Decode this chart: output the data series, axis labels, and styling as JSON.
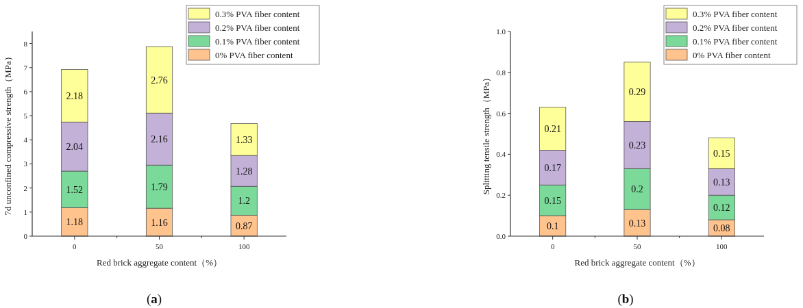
{
  "chart_data": [
    {
      "type": "bar",
      "stacked": true,
      "categories": [
        "0",
        "50",
        "100"
      ],
      "xlabel": "Red brick aggregate content（%）",
      "ylabel": "7d unconfined compressive strength（MPa）",
      "ylim": [
        0,
        8.5
      ],
      "yticks": [
        0,
        1,
        2,
        3,
        4,
        5,
        6,
        7,
        8
      ],
      "legend": "top right",
      "data_labels": true,
      "annotations": [
        "(**a**)"
      ],
      "series": [
        {
          "name": "0% PVA fiber content",
          "color": "#ffc38e",
          "values": [
            1.18,
            1.16,
            0.87
          ]
        },
        {
          "name": "0.1% PVA fiber content",
          "color": "#7bd99a",
          "values": [
            1.52,
            1.79,
            1.2
          ]
        },
        {
          "name": "0.2% PVA fiber content",
          "color": "#c3b1d8",
          "values": [
            2.04,
            2.16,
            1.28
          ]
        },
        {
          "name": "0.3% PVA fiber content",
          "color": "#ffff99",
          "values": [
            2.18,
            2.76,
            1.33
          ]
        }
      ]
    },
    {
      "type": "bar",
      "stacked": true,
      "categories": [
        "0",
        "50",
        "100"
      ],
      "xlabel": "Red brick aggregate content（%）",
      "ylabel": "Splitting tensile strength（MPa）",
      "ylim": [
        0,
        1.0
      ],
      "yticks": [
        {
          "value": 0,
          "label": "0.0"
        },
        {
          "value": 0.2,
          "label": "0.2"
        },
        {
          "value": 0.4,
          "label": "0.4"
        },
        {
          "value": 0.6,
          "label": "0.6"
        },
        {
          "value": 0.8,
          "label": "0.8"
        },
        {
          "value": 1.0,
          "label": "1.0"
        }
      ],
      "legend": "top right",
      "data_labels": true,
      "annotations": [
        "(**b**)"
      ],
      "series": [
        {
          "name": "0% PVA fiber content",
          "color": "#ffc38e",
          "values": [
            0.1,
            0.13,
            0.08
          ]
        },
        {
          "name": "0.1% PVA fiber content",
          "color": "#7bd99a",
          "values": [
            0.15,
            0.2,
            0.12
          ]
        },
        {
          "name": "0.2% PVA fiber content",
          "color": "#c3b1d8",
          "values": [
            0.17,
            0.23,
            0.13
          ]
        },
        {
          "name": "0.3% PVA fiber content",
          "color": "#ffff99",
          "values": [
            0.21,
            0.29,
            0.15
          ]
        }
      ]
    }
  ]
}
